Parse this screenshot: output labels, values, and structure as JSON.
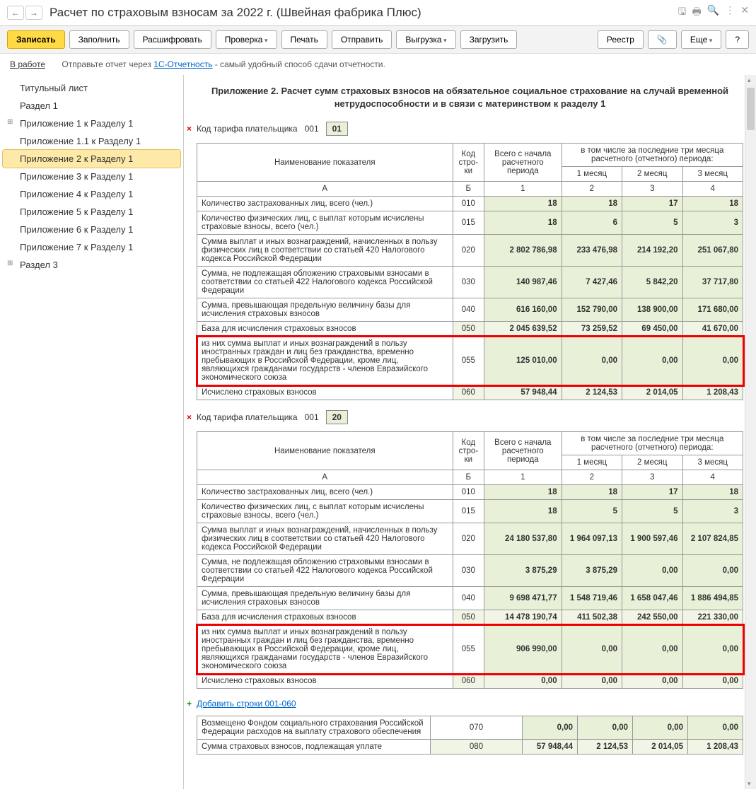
{
  "title": "Расчет по страховым взносам за 2022 г. (Швейная фабрика Плюс)",
  "toolbar": {
    "save": "Записать",
    "fill": "Заполнить",
    "decode": "Расшифровать",
    "check": "Проверка",
    "print": "Печать",
    "send": "Отправить",
    "upload": "Выгрузка",
    "download": "Загрузить",
    "registry": "Реестр",
    "more": "Еще",
    "help": "?"
  },
  "info": {
    "status": "В работе",
    "text1": "Отправьте отчет через ",
    "link": "1С-Отчетность",
    "text2": " - самый удобный способ сдачи отчетности."
  },
  "sidebar": [
    {
      "label": "Титульный лист"
    },
    {
      "label": "Раздел 1"
    },
    {
      "label": "Приложение 1 к Разделу 1",
      "child": true
    },
    {
      "label": "Приложение 1.1 к Разделу 1"
    },
    {
      "label": "Приложение 2 к Разделу 1",
      "selected": true
    },
    {
      "label": "Приложение 3 к Разделу 1"
    },
    {
      "label": "Приложение 4 к Разделу 1"
    },
    {
      "label": "Приложение 5 к Разделу 1"
    },
    {
      "label": "Приложение 6 к Разделу 1"
    },
    {
      "label": "Приложение 7 к Разделу 1"
    },
    {
      "label": "Раздел 3",
      "child": true
    }
  ],
  "section_title": "Приложение 2. Расчет сумм страховых взносов на обязательное социальное страхование\nна случай временной нетрудоспособности и в связи с материнством к разделу 1",
  "tariff_label": "Код тарифа плательщика",
  "tariff_num": "001",
  "tariff1": "01",
  "tariff2": "20",
  "headers": {
    "name": "Наименование показателя",
    "code": "Код стро-ки",
    "total": "Всего с начала расчетного периода",
    "last3": "в том числе за последние три месяца расчетного (отчетного) периода:",
    "m1": "1 месяц",
    "m2": "2 месяц",
    "m3": "3 месяц",
    "colA": "А",
    "colB": "Б",
    "c1": "1",
    "c2": "2",
    "c3": "3",
    "c4": "4"
  },
  "add_link": "Добавить строки 001-060",
  "t1": [
    {
      "n": "Количество застрахованных лиц, всего (чел.)",
      "c": "010",
      "v": [
        "18",
        "18",
        "17",
        "18"
      ]
    },
    {
      "n": "Количество физических лиц, с выплат которым исчислены страховые взносы, всего (чел.)",
      "c": "015",
      "v": [
        "18",
        "6",
        "5",
        "3"
      ]
    },
    {
      "n": "Сумма выплат и иных вознаграждений, начисленных в пользу физических лиц в соответствии со статьей 420 Налогового кодекса Российской Федерации",
      "c": "020",
      "v": [
        "2 802 786,98",
        "233 476,98",
        "214 192,20",
        "251 067,80"
      ]
    },
    {
      "n": "Сумма, не подлежащая обложению страховыми взносами в соответствии со статьей 422 Налогового кодекса Российской Федерации",
      "c": "030",
      "v": [
        "140 987,46",
        "7 427,46",
        "5 842,20",
        "37 717,80"
      ]
    },
    {
      "n": "Сумма, превышающая предельную величину базы для исчисления страховых взносов",
      "c": "040",
      "v": [
        "616 160,00",
        "152 790,00",
        "138 900,00",
        "171 680,00"
      ]
    },
    {
      "n": "База для исчисления страховых взносов",
      "c": "050",
      "v": [
        "2 045 639,52",
        "73 259,52",
        "69 450,00",
        "41 670,00"
      ],
      "hl": true
    },
    {
      "n": "из них сумма выплат и иных вознаграждений в пользу иностранных граждан и лиц без гражданства, временно пребывающих в Российской Федерации, кроме лиц, являющихся гражданами государств - членов Евразийского экономического союза",
      "c": "055",
      "v": [
        "125 010,00",
        "0,00",
        "0,00",
        "0,00"
      ],
      "red": true
    },
    {
      "n": "Исчислено страховых взносов",
      "c": "060",
      "v": [
        "57 948,44",
        "2 124,53",
        "2 014,05",
        "1 208,43"
      ],
      "hl": true
    }
  ],
  "t2": [
    {
      "n": "Количество застрахованных лиц, всего (чел.)",
      "c": "010",
      "v": [
        "18",
        "18",
        "17",
        "18"
      ]
    },
    {
      "n": "Количество физических лиц, с выплат которым исчислены страховые взносы, всего (чел.)",
      "c": "015",
      "v": [
        "18",
        "5",
        "5",
        "3"
      ]
    },
    {
      "n": "Сумма выплат и иных вознаграждений, начисленных в пользу физических лиц в соответствии со статьей 420 Налогового кодекса Российской Федерации",
      "c": "020",
      "v": [
        "24 180 537,80",
        "1 964 097,13",
        "1 900 597,46",
        "2 107 824,85"
      ]
    },
    {
      "n": "Сумма, не подлежащая обложению страховыми взносами в соответствии со статьей 422 Налогового кодекса Российской Федерации",
      "c": "030",
      "v": [
        "3 875,29",
        "3 875,29",
        "0,00",
        "0,00"
      ]
    },
    {
      "n": "Сумма, превышающая предельную величину базы для исчисления страховых взносов",
      "c": "040",
      "v": [
        "9 698 471,77",
        "1 548 719,46",
        "1 658 047,46",
        "1 886 494,85"
      ]
    },
    {
      "n": "База для исчисления страховых взносов",
      "c": "050",
      "v": [
        "14 478 190,74",
        "411 502,38",
        "242 550,00",
        "221 330,00"
      ],
      "hl": true
    },
    {
      "n": "из них сумма выплат и иных вознаграждений в пользу иностранных граждан и лиц без гражданства, временно пребывающих в Российской Федерации, кроме лиц, являющихся гражданами государств - членов Евразийского экономического союза",
      "c": "055",
      "v": [
        "906 990,00",
        "0,00",
        "0,00",
        "0,00"
      ],
      "red": true
    },
    {
      "n": "Исчислено страховых взносов",
      "c": "060",
      "v": [
        "0,00",
        "0,00",
        "0,00",
        "0,00"
      ],
      "hl": true
    }
  ],
  "t3": [
    {
      "n": "Возмещено Фондом социального страхования Российской Федерации расходов на выплату страхового обеспечения",
      "c": "070",
      "v": [
        "0,00",
        "0,00",
        "0,00",
        "0,00"
      ]
    },
    {
      "n": "Сумма страховых взносов, подлежащая уплате",
      "c": "080",
      "v": [
        "57 948,44",
        "2 124,53",
        "2 014,05",
        "1 208,43"
      ],
      "hl": true
    }
  ]
}
